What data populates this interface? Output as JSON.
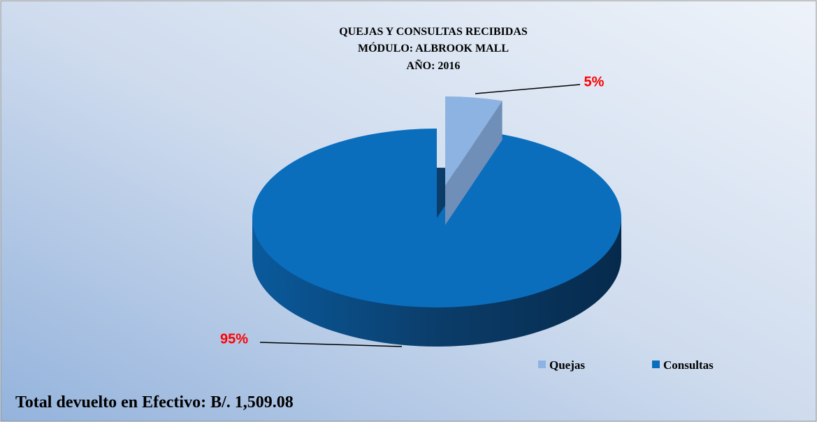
{
  "chart_data": {
    "type": "pie3d",
    "title": [
      "QUEJAS Y CONSULTAS RECIBIDAS",
      "MÓDULO: ALBROOK MALL",
      "AÑO: 2016"
    ],
    "categories": [
      "Quejas",
      "Consultas"
    ],
    "values": [
      5,
      95
    ],
    "value_labels": [
      "5%",
      "95%"
    ],
    "colors": [
      "#8db3e2",
      "#0a6ebd"
    ],
    "label_color": "#ff0000",
    "legend": "bottom-right",
    "annotation": "Total devuelto en Efectivo: B/. 1,509.08"
  }
}
